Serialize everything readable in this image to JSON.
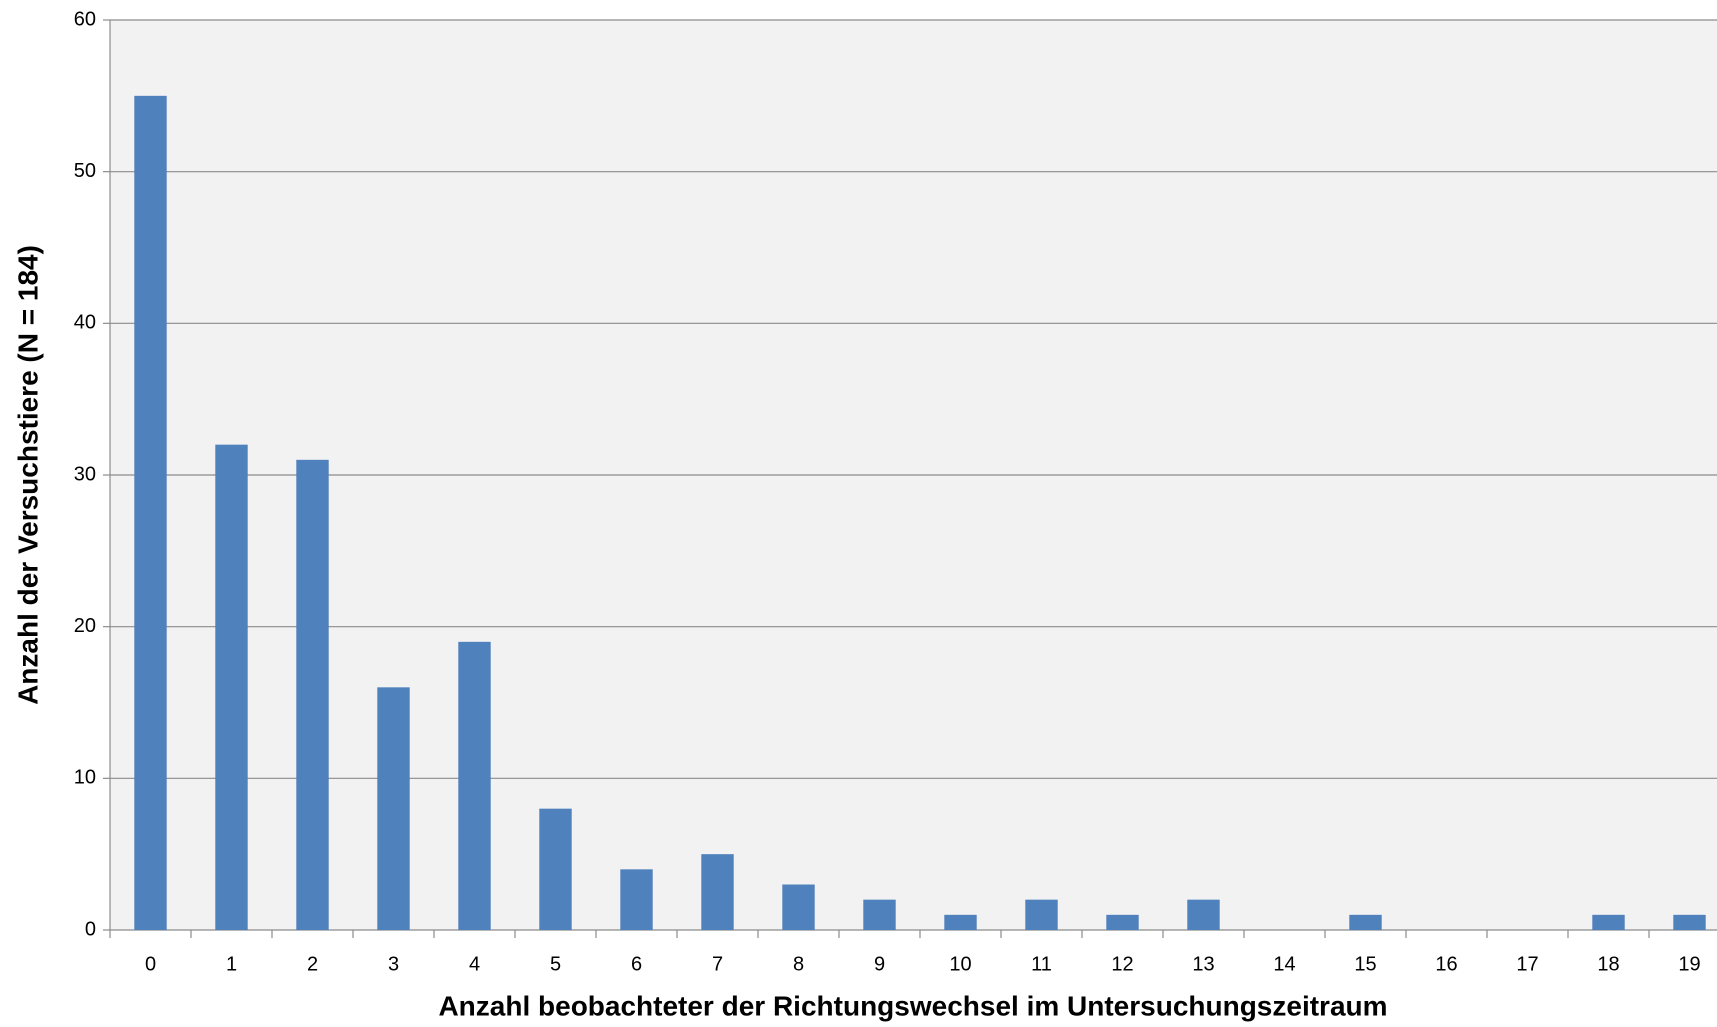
{
  "chart_data": {
    "type": "bar",
    "xlabel": "Anzahl beobachteter der Richtungswechsel im Untersuchungszeitraum",
    "ylabel": "Anzahl der Versuchstiere (N = 184)",
    "categories": [
      "0",
      "1",
      "2",
      "3",
      "4",
      "5",
      "6",
      "7",
      "8",
      "9",
      "10",
      "11",
      "12",
      "13",
      "14",
      "15",
      "16",
      "17",
      "18",
      "19"
    ],
    "values": [
      55,
      32,
      31,
      16,
      19,
      8,
      4,
      5,
      3,
      2,
      1,
      2,
      1,
      2,
      0,
      1,
      0,
      0,
      1,
      1
    ],
    "color": "#4f81bd",
    "ylim": [
      0,
      60
    ],
    "yticks": [
      0,
      10,
      20,
      30,
      40,
      50,
      60
    ],
    "grid": true
  }
}
